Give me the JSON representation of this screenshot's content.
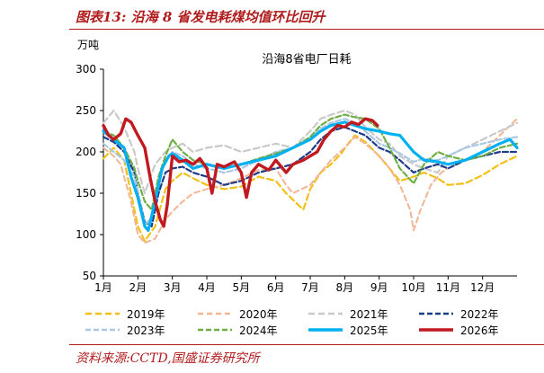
{
  "figure": {
    "label": "图表13:",
    "title": "沿海 8 省发电耗煤均值环比回升",
    "source": "资料来源:CCTD,国盛证券研究所"
  },
  "chart_data": {
    "type": "line",
    "title": "沿海8省电厂日耗",
    "yunit": "万吨",
    "ylim": [
      50,
      300
    ],
    "yticks": [
      50,
      100,
      150,
      200,
      250,
      300
    ],
    "xlim": [
      1,
      13
    ],
    "xticks": [
      "1月",
      "2月",
      "3月",
      "4月",
      "5月",
      "6月",
      "7月",
      "8月",
      "9月",
      "10月",
      "11月",
      "12月"
    ],
    "legend_position": "bottom",
    "series": [
      {
        "name": "2019年",
        "color": "#f2c018",
        "dash": "7,4",
        "width": 2.2,
        "points": [
          [
            1,
            192
          ],
          [
            1.3,
            205
          ],
          [
            1.6,
            190
          ],
          [
            1.8,
            150
          ],
          [
            2.0,
            110
          ],
          [
            2.2,
            92
          ],
          [
            2.5,
            110
          ],
          [
            2.8,
            155
          ],
          [
            3.0,
            165
          ],
          [
            3.3,
            175
          ],
          [
            3.6,
            168
          ],
          [
            4.0,
            160
          ],
          [
            4.5,
            155
          ],
          [
            5.0,
            158
          ],
          [
            5.5,
            170
          ],
          [
            6.0,
            165
          ],
          [
            6.3,
            150
          ],
          [
            6.6,
            138
          ],
          [
            6.8,
            130
          ],
          [
            7.0,
            155
          ],
          [
            7.3,
            175
          ],
          [
            7.6,
            185
          ],
          [
            7.9,
            198
          ],
          [
            8.1,
            210
          ],
          [
            8.3,
            220
          ],
          [
            8.6,
            212
          ],
          [
            9.0,
            195
          ],
          [
            9.3,
            180
          ],
          [
            9.6,
            165
          ],
          [
            10.0,
            170
          ],
          [
            10.3,
            175
          ],
          [
            10.7,
            168
          ],
          [
            11.0,
            160
          ],
          [
            11.5,
            162
          ],
          [
            12.0,
            172
          ],
          [
            12.5,
            185
          ],
          [
            13,
            195
          ]
        ]
      },
      {
        "name": "2020年",
        "color": "#f2b594",
        "dash": "6,4",
        "width": 2.0,
        "points": [
          [
            1,
            205
          ],
          [
            1.3,
            195
          ],
          [
            1.5,
            185
          ],
          [
            1.8,
            140
          ],
          [
            2.0,
            100
          ],
          [
            2.2,
            90
          ],
          [
            2.5,
            95
          ],
          [
            2.8,
            118
          ],
          [
            3.0,
            128
          ],
          [
            3.3,
            140
          ],
          [
            3.6,
            150
          ],
          [
            4.0,
            155
          ],
          [
            4.5,
            160
          ],
          [
            5.0,
            168
          ],
          [
            5.5,
            178
          ],
          [
            6.0,
            180
          ],
          [
            6.3,
            160
          ],
          [
            6.5,
            150
          ],
          [
            7.0,
            160
          ],
          [
            7.3,
            175
          ],
          [
            7.6,
            190
          ],
          [
            8.0,
            205
          ],
          [
            8.3,
            218
          ],
          [
            8.6,
            210
          ],
          [
            9.0,
            195
          ],
          [
            9.3,
            180
          ],
          [
            9.6,
            160
          ],
          [
            9.9,
            130
          ],
          [
            10.0,
            105
          ],
          [
            10.2,
            130
          ],
          [
            10.5,
            160
          ],
          [
            10.8,
            175
          ],
          [
            11.0,
            180
          ],
          [
            11.5,
            190
          ],
          [
            12.0,
            200
          ],
          [
            12.5,
            220
          ],
          [
            13,
            240
          ]
        ]
      },
      {
        "name": "2021年",
        "color": "#c9c9c9",
        "dash": "7,4",
        "width": 2.2,
        "points": [
          [
            1,
            235
          ],
          [
            1.3,
            250
          ],
          [
            1.6,
            230
          ],
          [
            1.9,
            200
          ],
          [
            2.0,
            180
          ],
          [
            2.2,
            150
          ],
          [
            2.5,
            185
          ],
          [
            2.8,
            200
          ],
          [
            3.0,
            205
          ],
          [
            3.3,
            210
          ],
          [
            3.6,
            200
          ],
          [
            4.0,
            205
          ],
          [
            4.5,
            208
          ],
          [
            5.0,
            200
          ],
          [
            5.5,
            205
          ],
          [
            6.0,
            210
          ],
          [
            6.5,
            205
          ],
          [
            7.0,
            225
          ],
          [
            7.3,
            240
          ],
          [
            7.6,
            245
          ],
          [
            8.0,
            250
          ],
          [
            8.3,
            245
          ],
          [
            8.6,
            230
          ],
          [
            9.0,
            215
          ],
          [
            9.3,
            210
          ],
          [
            9.6,
            195
          ],
          [
            10.0,
            185
          ],
          [
            10.3,
            180
          ],
          [
            10.7,
            175
          ],
          [
            11.0,
            195
          ],
          [
            11.5,
            205
          ],
          [
            12.0,
            215
          ],
          [
            12.5,
            225
          ],
          [
            13,
            235
          ]
        ]
      },
      {
        "name": "2022年",
        "color": "#1f3c88",
        "dash": "6,3",
        "width": 2.2,
        "points": [
          [
            1,
            218
          ],
          [
            1.3,
            212
          ],
          [
            1.6,
            200
          ],
          [
            1.9,
            175
          ],
          [
            2.0,
            150
          ],
          [
            2.2,
            115
          ],
          [
            2.4,
            110
          ],
          [
            2.6,
            150
          ],
          [
            2.8,
            175
          ],
          [
            3.0,
            180
          ],
          [
            3.3,
            182
          ],
          [
            3.6,
            175
          ],
          [
            4.0,
            170
          ],
          [
            4.5,
            160
          ],
          [
            5.0,
            165
          ],
          [
            5.5,
            175
          ],
          [
            6.0,
            180
          ],
          [
            6.5,
            185
          ],
          [
            7.0,
            200
          ],
          [
            7.3,
            215
          ],
          [
            7.6,
            225
          ],
          [
            8.0,
            230
          ],
          [
            8.3,
            225
          ],
          [
            8.6,
            220
          ],
          [
            9.0,
            205
          ],
          [
            9.3,
            200
          ],
          [
            9.6,
            190
          ],
          [
            10.0,
            175
          ],
          [
            10.3,
            180
          ],
          [
            10.7,
            185
          ],
          [
            11.0,
            180
          ],
          [
            11.5,
            190
          ],
          [
            12.0,
            195
          ],
          [
            12.5,
            200
          ],
          [
            13,
            200
          ]
        ]
      },
      {
        "name": "2023年",
        "color": "#a9c8e6",
        "dash": "6,3",
        "width": 2.2,
        "points": [
          [
            1,
            210
          ],
          [
            1.3,
            200
          ],
          [
            1.6,
            190
          ],
          [
            1.9,
            170
          ],
          [
            2.0,
            150
          ],
          [
            2.2,
            112
          ],
          [
            2.4,
            120
          ],
          [
            2.6,
            160
          ],
          [
            2.8,
            190
          ],
          [
            3.0,
            200
          ],
          [
            3.3,
            195
          ],
          [
            3.6,
            185
          ],
          [
            4.0,
            180
          ],
          [
            4.5,
            175
          ],
          [
            5.0,
            180
          ],
          [
            5.5,
            190
          ],
          [
            6.0,
            200
          ],
          [
            6.5,
            205
          ],
          [
            7.0,
            215
          ],
          [
            7.3,
            228
          ],
          [
            7.6,
            235
          ],
          [
            8.0,
            240
          ],
          [
            8.3,
            235
          ],
          [
            8.6,
            225
          ],
          [
            9.0,
            210
          ],
          [
            9.3,
            205
          ],
          [
            9.6,
            198
          ],
          [
            10.0,
            188
          ],
          [
            10.3,
            192
          ],
          [
            10.7,
            190
          ],
          [
            11.0,
            195
          ],
          [
            11.5,
            205
          ],
          [
            12.0,
            210
          ],
          [
            12.5,
            215
          ],
          [
            13,
            218
          ]
        ]
      },
      {
        "name": "2024年",
        "color": "#6fae45",
        "dash": "6,3",
        "width": 2.2,
        "points": [
          [
            1,
            225
          ],
          [
            1.3,
            220
          ],
          [
            1.6,
            205
          ],
          [
            1.9,
            180
          ],
          [
            2.0,
            165
          ],
          [
            2.2,
            140
          ],
          [
            2.4,
            130
          ],
          [
            2.6,
            170
          ],
          [
            2.8,
            195
          ],
          [
            3.0,
            215
          ],
          [
            3.3,
            200
          ],
          [
            3.6,
            190
          ],
          [
            4.0,
            185
          ],
          [
            4.5,
            180
          ],
          [
            5.0,
            185
          ],
          [
            5.5,
            192
          ],
          [
            6.0,
            198
          ],
          [
            6.5,
            205
          ],
          [
            7.0,
            218
          ],
          [
            7.3,
            232
          ],
          [
            7.6,
            240
          ],
          [
            8.0,
            245
          ],
          [
            8.3,
            242
          ],
          [
            8.6,
            240
          ],
          [
            9.0,
            228
          ],
          [
            9.3,
            205
          ],
          [
            9.6,
            180
          ],
          [
            10.0,
            162
          ],
          [
            10.3,
            185
          ],
          [
            10.7,
            200
          ],
          [
            11.0,
            195
          ],
          [
            11.5,
            190
          ],
          [
            12.0,
            195
          ],
          [
            12.5,
            205
          ],
          [
            13,
            210
          ]
        ]
      },
      {
        "name": "2025年",
        "color": "#00b0f0",
        "dash": "",
        "width": 3.2,
        "points": [
          [
            1,
            225
          ],
          [
            1.3,
            215
          ],
          [
            1.6,
            205
          ],
          [
            1.8,
            170
          ],
          [
            2.0,
            145
          ],
          [
            2.2,
            110
          ],
          [
            2.3,
            105
          ],
          [
            2.5,
            140
          ],
          [
            2.7,
            180
          ],
          [
            2.9,
            195
          ],
          [
            3.0,
            198
          ],
          [
            3.3,
            190
          ],
          [
            3.6,
            180
          ],
          [
            4.0,
            185
          ],
          [
            4.5,
            180
          ],
          [
            5.0,
            185
          ],
          [
            5.5,
            190
          ],
          [
            6.0,
            195
          ],
          [
            6.5,
            205
          ],
          [
            7.0,
            215
          ],
          [
            7.3,
            225
          ],
          [
            7.6,
            232
          ],
          [
            8.0,
            236
          ],
          [
            8.3,
            232
          ],
          [
            8.6,
            228
          ],
          [
            9.0,
            225
          ],
          [
            9.3,
            222
          ],
          [
            9.6,
            220
          ],
          [
            10.0,
            200
          ],
          [
            10.3,
            190
          ],
          [
            10.7,
            188
          ],
          [
            11.0,
            185
          ],
          [
            11.5,
            190
          ],
          [
            12.0,
            200
          ],
          [
            12.5,
            210
          ],
          [
            12.8,
            215
          ],
          [
            13,
            205
          ]
        ]
      },
      {
        "name": "2026年",
        "color": "#c0191f",
        "dash": "",
        "width": 3.4,
        "points": [
          [
            1,
            232
          ],
          [
            1.15,
            220
          ],
          [
            1.3,
            215
          ],
          [
            1.5,
            222
          ],
          [
            1.65,
            240
          ],
          [
            1.8,
            236
          ],
          [
            2.0,
            220
          ],
          [
            2.2,
            205
          ],
          [
            2.35,
            170
          ],
          [
            2.5,
            140
          ],
          [
            2.65,
            118
          ],
          [
            2.75,
            110
          ],
          [
            2.85,
            135
          ],
          [
            3.0,
            195
          ],
          [
            3.2,
            188
          ],
          [
            3.4,
            190
          ],
          [
            3.6,
            185
          ],
          [
            3.8,
            192
          ],
          [
            4.0,
            180
          ],
          [
            4.15,
            150
          ],
          [
            4.3,
            185
          ],
          [
            4.5,
            182
          ],
          [
            4.8,
            188
          ],
          [
            5.0,
            175
          ],
          [
            5.15,
            145
          ],
          [
            5.3,
            175
          ],
          [
            5.5,
            185
          ],
          [
            5.8,
            178
          ],
          [
            6.0,
            190
          ],
          [
            6.3,
            175
          ],
          [
            6.5,
            185
          ],
          [
            6.8,
            190
          ],
          [
            7.0,
            195
          ],
          [
            7.2,
            200
          ],
          [
            7.4,
            215
          ],
          [
            7.6,
            225
          ],
          [
            7.8,
            232
          ],
          [
            8.0,
            230
          ],
          [
            8.2,
            236
          ],
          [
            8.4,
            233
          ],
          [
            8.6,
            240
          ],
          [
            8.8,
            238
          ],
          [
            8.95,
            232
          ]
        ]
      }
    ]
  }
}
